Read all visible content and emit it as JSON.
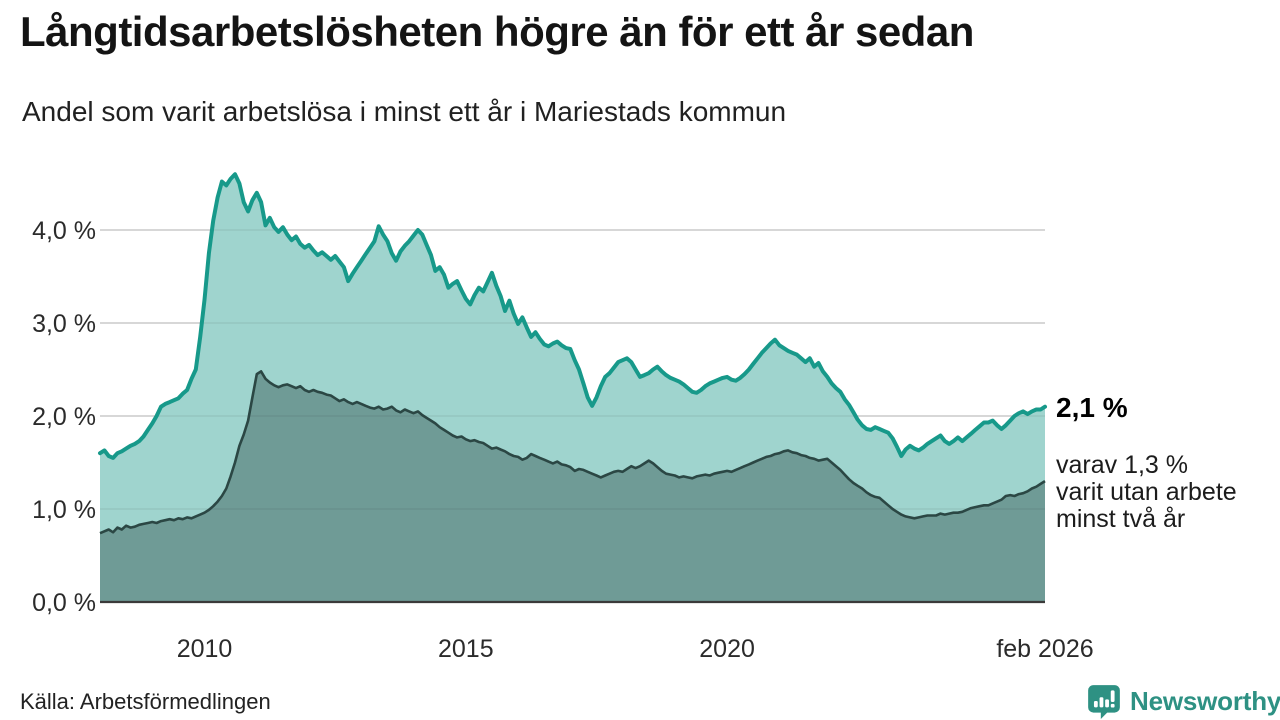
{
  "header": {
    "title": "Långtidsarbetslösheten högre än för ett år sedan",
    "subtitle": "Andel som varit arbetslösa i minst ett år i Mariestads kommun"
  },
  "annotations": {
    "latest_value_label": "2,1 %",
    "secondary_line1": "varav 1,3 %",
    "secondary_line2": "varit utan arbete",
    "secondary_line3": "minst två år"
  },
  "footer": {
    "source": "Källa: Arbetsförmedlingen",
    "brand_name": "Newsworthy",
    "brand_icon": "speech-bubble-bar-chart-icon"
  },
  "colors": {
    "line_primary": "#17998a",
    "fill_primary": "#9fd4ce",
    "line_secondary": "#2b4744",
    "fill_secondary": "#6f9b96",
    "grid": "#d9d9d9",
    "grid_overlay": "rgba(40,40,40,0.08)",
    "baseline": "#3a3a3a",
    "axis_text": "#2b2b2b",
    "brand": "#2e9183"
  },
  "chart_data": {
    "type": "area",
    "title": "Långtidsarbetslösheten högre än för ett år sedan",
    "subtitle": "Andel som varit arbetslösa i minst ett år i Mariestads kommun",
    "unit": "%",
    "x_start": "2008-01",
    "x_end": "2026-02",
    "x_interval": "monthly",
    "grid": "horizontal",
    "legend": "none (annotated at line ends)",
    "ylim": [
      0,
      4.75
    ],
    "y_tick_values": [
      0,
      1,
      2,
      3,
      4
    ],
    "y_ticks": [
      "0,0 %",
      "1,0 %",
      "2,0 %",
      "3,0 %",
      "4,0 %"
    ],
    "x_ticks": [
      {
        "label": "2010",
        "month_index": 24
      },
      {
        "label": "2015",
        "month_index": 84
      },
      {
        "label": "2020",
        "month_index": 144
      },
      {
        "label": "feb 2026",
        "month_index": 217
      }
    ],
    "series": [
      {
        "name": "Andel som varit arbetslösa minst ett år",
        "latest_label": "2,1 %",
        "latest_value": 2.1,
        "values": [
          1.6,
          1.63,
          1.57,
          1.55,
          1.6,
          1.62,
          1.65,
          1.68,
          1.7,
          1.73,
          1.78,
          1.85,
          1.92,
          2.0,
          2.1,
          2.13,
          2.15,
          2.17,
          2.19,
          2.24,
          2.28,
          2.4,
          2.5,
          2.85,
          3.25,
          3.75,
          4.1,
          4.35,
          4.52,
          4.48,
          4.55,
          4.6,
          4.5,
          4.3,
          4.2,
          4.32,
          4.4,
          4.3,
          4.05,
          4.13,
          4.03,
          3.98,
          4.03,
          3.95,
          3.89,
          3.93,
          3.85,
          3.81,
          3.84,
          3.78,
          3.73,
          3.76,
          3.72,
          3.68,
          3.72,
          3.66,
          3.6,
          3.45,
          3.53,
          3.6,
          3.67,
          3.74,
          3.81,
          3.88,
          4.04,
          3.95,
          3.88,
          3.75,
          3.67,
          3.77,
          3.83,
          3.88,
          3.94,
          4.0,
          3.95,
          3.84,
          3.73,
          3.56,
          3.6,
          3.52,
          3.38,
          3.42,
          3.45,
          3.35,
          3.26,
          3.2,
          3.3,
          3.38,
          3.34,
          3.44,
          3.54,
          3.4,
          3.29,
          3.13,
          3.24,
          3.1,
          2.99,
          3.06,
          2.95,
          2.85,
          2.9,
          2.83,
          2.77,
          2.75,
          2.78,
          2.8,
          2.76,
          2.73,
          2.72,
          2.6,
          2.5,
          2.35,
          2.2,
          2.11,
          2.2,
          2.32,
          2.42,
          2.46,
          2.52,
          2.58,
          2.6,
          2.62,
          2.58,
          2.5,
          2.42,
          2.44,
          2.46,
          2.5,
          2.53,
          2.48,
          2.44,
          2.41,
          2.39,
          2.37,
          2.34,
          2.3,
          2.26,
          2.25,
          2.28,
          2.32,
          2.35,
          2.37,
          2.39,
          2.41,
          2.42,
          2.39,
          2.38,
          2.41,
          2.45,
          2.5,
          2.56,
          2.62,
          2.68,
          2.73,
          2.78,
          2.82,
          2.76,
          2.73,
          2.7,
          2.68,
          2.66,
          2.62,
          2.58,
          2.62,
          2.53,
          2.57,
          2.48,
          2.42,
          2.35,
          2.3,
          2.26,
          2.18,
          2.12,
          2.04,
          1.96,
          1.9,
          1.86,
          1.85,
          1.88,
          1.86,
          1.84,
          1.82,
          1.76,
          1.67,
          1.57,
          1.64,
          1.68,
          1.65,
          1.63,
          1.66,
          1.7,
          1.73,
          1.76,
          1.79,
          1.73,
          1.7,
          1.73,
          1.77,
          1.73,
          1.77,
          1.81,
          1.85,
          1.89,
          1.93,
          1.93,
          1.95,
          1.9,
          1.86,
          1.9,
          1.95,
          2.0,
          2.03,
          2.05,
          2.02,
          2.05,
          2.07,
          2.07,
          2.1
        ]
      },
      {
        "name": "varav utan arbete minst två år",
        "latest_label": "varav 1,3 % varit utan arbete minst två år",
        "latest_value": 1.3,
        "values": [
          0.74,
          0.76,
          0.78,
          0.75,
          0.8,
          0.78,
          0.82,
          0.8,
          0.81,
          0.83,
          0.84,
          0.85,
          0.86,
          0.85,
          0.87,
          0.88,
          0.89,
          0.88,
          0.9,
          0.89,
          0.91,
          0.9,
          0.92,
          0.94,
          0.96,
          0.99,
          1.03,
          1.08,
          1.14,
          1.22,
          1.35,
          1.5,
          1.68,
          1.8,
          1.95,
          2.2,
          2.45,
          2.48,
          2.4,
          2.36,
          2.33,
          2.31,
          2.33,
          2.34,
          2.32,
          2.3,
          2.32,
          2.28,
          2.26,
          2.28,
          2.26,
          2.25,
          2.23,
          2.22,
          2.19,
          2.16,
          2.18,
          2.15,
          2.13,
          2.15,
          2.13,
          2.11,
          2.09,
          2.08,
          2.1,
          2.07,
          2.08,
          2.1,
          2.06,
          2.04,
          2.07,
          2.05,
          2.03,
          2.05,
          2.01,
          1.98,
          1.95,
          1.92,
          1.88,
          1.85,
          1.82,
          1.79,
          1.77,
          1.78,
          1.75,
          1.73,
          1.74,
          1.72,
          1.71,
          1.68,
          1.65,
          1.66,
          1.64,
          1.62,
          1.59,
          1.57,
          1.56,
          1.53,
          1.55,
          1.59,
          1.57,
          1.55,
          1.53,
          1.51,
          1.49,
          1.51,
          1.48,
          1.47,
          1.45,
          1.41,
          1.43,
          1.42,
          1.4,
          1.38,
          1.36,
          1.34,
          1.36,
          1.38,
          1.4,
          1.41,
          1.4,
          1.43,
          1.46,
          1.44,
          1.46,
          1.49,
          1.52,
          1.49,
          1.45,
          1.41,
          1.38,
          1.37,
          1.36,
          1.34,
          1.35,
          1.34,
          1.33,
          1.35,
          1.36,
          1.37,
          1.36,
          1.38,
          1.39,
          1.4,
          1.41,
          1.4,
          1.42,
          1.44,
          1.46,
          1.48,
          1.5,
          1.52,
          1.54,
          1.56,
          1.57,
          1.59,
          1.6,
          1.62,
          1.63,
          1.61,
          1.6,
          1.58,
          1.57,
          1.55,
          1.54,
          1.52,
          1.53,
          1.54,
          1.5,
          1.46,
          1.42,
          1.37,
          1.32,
          1.28,
          1.25,
          1.22,
          1.18,
          1.15,
          1.13,
          1.12,
          1.08,
          1.04,
          1.0,
          0.97,
          0.94,
          0.92,
          0.91,
          0.9,
          0.91,
          0.92,
          0.93,
          0.93,
          0.93,
          0.95,
          0.94,
          0.95,
          0.96,
          0.96,
          0.97,
          0.99,
          1.01,
          1.02,
          1.03,
          1.04,
          1.04,
          1.06,
          1.08,
          1.1,
          1.14,
          1.15,
          1.14,
          1.16,
          1.17,
          1.19,
          1.22,
          1.24,
          1.27,
          1.3
        ]
      }
    ]
  }
}
